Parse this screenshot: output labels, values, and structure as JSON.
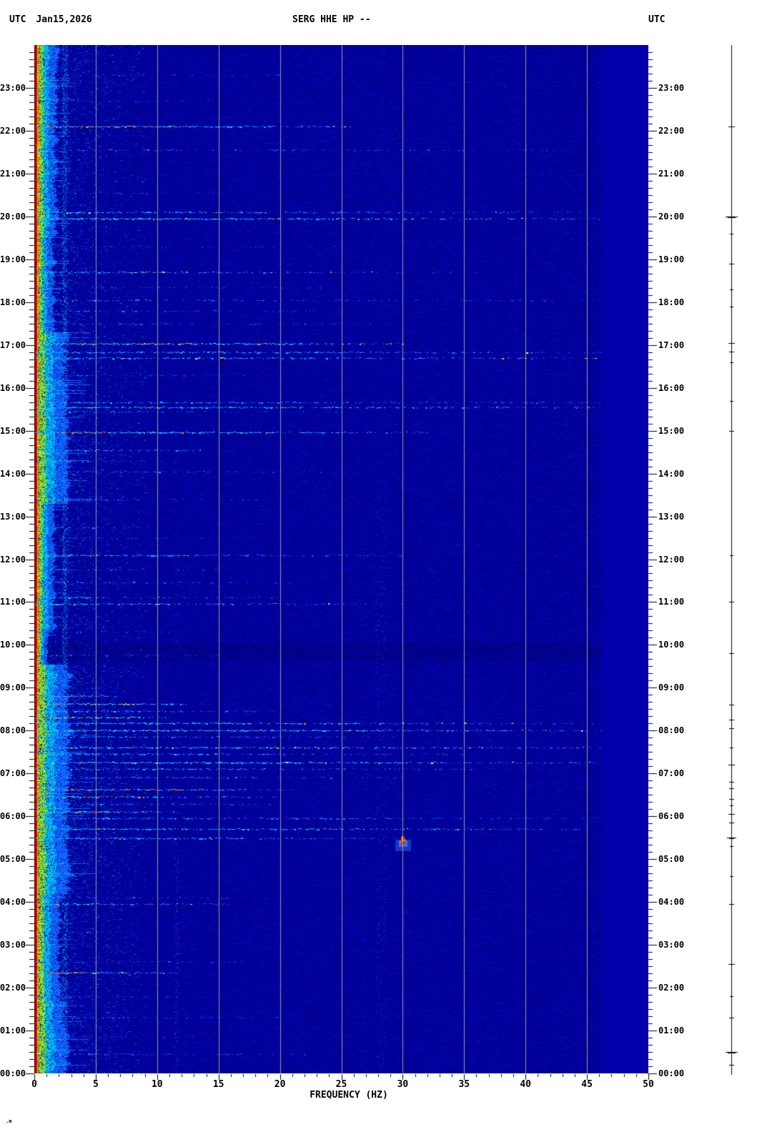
{
  "header": {
    "left_label": "UTC",
    "date": "Jan15,2026",
    "title": "SERG HHE HP --",
    "right_label": "UTC"
  },
  "x_axis": {
    "label": "FREQUENCY (HZ)",
    "tick_labels": [
      "0",
      "5",
      "10",
      "15",
      "20",
      "25",
      "30",
      "35",
      "40",
      "45",
      "50"
    ],
    "min_hz": 0,
    "max_hz": 50,
    "major_step_hz": 5,
    "minor_step_hz": 1
  },
  "y_axis": {
    "hour_labels": [
      "00:00",
      "01:00",
      "02:00",
      "03:00",
      "04:00",
      "05:00",
      "06:00",
      "07:00",
      "08:00",
      "09:00",
      "10:00",
      "11:00",
      "12:00",
      "13:00",
      "14:00",
      "15:00",
      "16:00",
      "17:00",
      "18:00",
      "19:00",
      "20:00",
      "21:00",
      "22:00",
      "23:00"
    ],
    "major_step_min": 60,
    "minor_step_min": 10
  },
  "corner_mark": ".m",
  "colors": {
    "page_bg": "#FFFFFF",
    "text": "#000000",
    "plot_base": "#0000A0",
    "plot_dark": "#000078",
    "plot_light": "#1420C8",
    "plot_flat": "#0000AA",
    "gridline": "#9C9C94",
    "band_dark_red": "#7A0000",
    "band_red": "#CC0000",
    "band_orange": "#FF9000",
    "band_yellow": "#FFE800",
    "band_green": "#55DD55",
    "streak_cyan": "#00CCEE",
    "streak_mid": "#00A0FF",
    "streak_blue": "#2255FF",
    "streak_dim": "#1133CC",
    "dot_orange": "#FF9900",
    "dot_red": "#EE3300",
    "dot_yellow": "#EEEE33",
    "trace": "#000000"
  },
  "chart_data": {
    "type": "heatmap",
    "subtype": "seismic-spectrogram",
    "title": "SERG HHE HP --",
    "date": "Jan15,2026",
    "timezone": "UTC",
    "xlabel": "FREQUENCY (HZ)",
    "x_range_hz": [
      0,
      50
    ],
    "y_range_hours": [
      0,
      24
    ],
    "colormap": "jet",
    "grid": "vertical gray lines every 5 Hz",
    "flat_cutoff_hz": 46.2,
    "activity_windows": [
      {
        "from": 0.0,
        "to": 1.7,
        "band_hz": 2.6,
        "level": 0.85
      },
      {
        "from": 1.7,
        "to": 4.2,
        "band_hz": 2.1,
        "level": 0.7
      },
      {
        "from": 4.2,
        "to": 9.55,
        "band_hz": 2.9,
        "level": 1.0
      },
      {
        "from": 9.55,
        "to": 10.3,
        "band_hz": 1.1,
        "level": 0.35
      },
      {
        "from": 10.3,
        "to": 13.3,
        "band_hz": 1.7,
        "level": 0.55
      },
      {
        "from": 13.3,
        "to": 17.3,
        "band_hz": 2.7,
        "level": 0.9
      },
      {
        "from": 17.3,
        "to": 19.6,
        "band_hz": 1.6,
        "level": 0.5
      },
      {
        "from": 19.6,
        "to": 24.0,
        "band_hz": 1.9,
        "level": 0.6
      }
    ],
    "vertical_bands": [
      {
        "hz": 2.45,
        "half_hz": 0.22,
        "from": 0,
        "to": 24,
        "strength": 0.75
      },
      {
        "hz": 4.9,
        "half_hz": 0.25,
        "from": 0,
        "to": 4,
        "strength": 0.18
      },
      {
        "hz": 6.3,
        "half_hz": 0.3,
        "from": 0,
        "to": 9.5,
        "strength": 0.12
      },
      {
        "hz": 11.55,
        "half_hz": 0.15,
        "from": 0,
        "to": 5.5,
        "strength": 0.3
      },
      {
        "hz": 11.55,
        "half_hz": 0.15,
        "from": 10,
        "to": 13,
        "strength": 0.12
      },
      {
        "hz": 26.8,
        "half_hz": 0.3,
        "from": 0,
        "to": 13,
        "strength": 0.1
      },
      {
        "hz": 28.2,
        "half_hz": 0.45,
        "from": 0,
        "to": 13.5,
        "strength": 0.25
      },
      {
        "hz": 28.2,
        "half_hz": 0.45,
        "from": 13.5,
        "to": 24,
        "strength": 0.08
      },
      {
        "hz": 30.4,
        "half_hz": 0.3,
        "from": 2,
        "to": 6,
        "strength": 0.1
      }
    ],
    "quiet_band_hours": {
      "from": 9.6,
      "to": 10.05
    },
    "events": [
      {
        "t": 0.45,
        "f": 22,
        "a": 0.3
      },
      {
        "t": 0.85,
        "f": 15,
        "a": 0.25
      },
      {
        "t": 1.3,
        "f": 20,
        "a": 0.3
      },
      {
        "t": 1.8,
        "f": 12,
        "a": 0.3
      },
      {
        "t": 2.35,
        "f": 12,
        "a": 0.7,
        "dots": 1,
        "red": 4.5
      },
      {
        "t": 2.6,
        "f": 18,
        "a": 0.3
      },
      {
        "t": 3.3,
        "f": 10,
        "a": 0.25
      },
      {
        "t": 3.95,
        "f": 16,
        "a": 0.55,
        "dots": 1,
        "red": 2
      },
      {
        "t": 4.1,
        "f": 20,
        "a": 0.3
      },
      {
        "t": 5.48,
        "f": 30,
        "a": 0.6,
        "dots": 1
      },
      {
        "t": 5.7,
        "f": 50,
        "a": 0.6,
        "dots": 1
      },
      {
        "t": 5.95,
        "f": 50,
        "a": 0.45
      },
      {
        "t": 6.1,
        "f": 12,
        "a": 0.85,
        "dots": 1,
        "red": 7
      },
      {
        "t": 6.28,
        "f": 20,
        "a": 0.45
      },
      {
        "t": 6.45,
        "f": 20,
        "a": 0.6,
        "dots": 1,
        "red": 10
      },
      {
        "t": 6.62,
        "f": 22,
        "a": 0.75,
        "dots": 1,
        "red": 14
      },
      {
        "t": 6.9,
        "f": 30,
        "a": 0.4
      },
      {
        "t": 7.1,
        "f": 40,
        "a": 0.5
      },
      {
        "t": 7.25,
        "f": 50,
        "a": 0.65,
        "dots": 1
      },
      {
        "t": 7.45,
        "f": 35,
        "a": 0.5
      },
      {
        "t": 7.6,
        "f": 50,
        "a": 0.6,
        "dots": 1
      },
      {
        "t": 7.85,
        "f": 30,
        "a": 0.45
      },
      {
        "t": 8.0,
        "f": 50,
        "a": 0.7,
        "dots": 1
      },
      {
        "t": 8.18,
        "f": 50,
        "a": 0.55,
        "dots": 1
      },
      {
        "t": 8.3,
        "f": 11,
        "a": 0.9,
        "dots": 1,
        "red": 8
      },
      {
        "t": 8.45,
        "f": 20,
        "a": 0.5
      },
      {
        "t": 8.62,
        "f": 14,
        "a": 0.9,
        "dots": 1,
        "red": 9
      },
      {
        "t": 8.8,
        "f": 7,
        "a": 0.8,
        "red": 5
      },
      {
        "t": 9.75,
        "f": 15,
        "a": 0.3
      },
      {
        "t": 10.3,
        "f": 12,
        "a": 0.25
      },
      {
        "t": 10.95,
        "f": 30,
        "a": 0.5,
        "dots": 1
      },
      {
        "t": 11.1,
        "f": 20,
        "a": 0.45
      },
      {
        "t": 11.45,
        "f": 22,
        "a": 0.35
      },
      {
        "t": 11.75,
        "f": 15,
        "a": 0.3
      },
      {
        "t": 12.1,
        "f": 30,
        "a": 0.5,
        "dots": 1
      },
      {
        "t": 12.5,
        "f": 20,
        "a": 0.25
      },
      {
        "t": 12.75,
        "f": 10,
        "a": 0.4
      },
      {
        "t": 13.4,
        "f": 18,
        "a": 0.3
      },
      {
        "t": 14.05,
        "f": 25,
        "a": 0.35
      },
      {
        "t": 14.3,
        "f": 12,
        "a": 0.3
      },
      {
        "t": 14.55,
        "f": 17,
        "a": 0.5
      },
      {
        "t": 14.96,
        "f": 32,
        "a": 0.8,
        "dots": 1,
        "red": 6
      },
      {
        "t": 15.45,
        "f": 25,
        "a": 0.3
      },
      {
        "t": 15.55,
        "f": 50,
        "a": 0.6,
        "dots": 1
      },
      {
        "t": 15.66,
        "f": 50,
        "a": 0.45
      },
      {
        "t": 16.3,
        "f": 20,
        "a": 0.25
      },
      {
        "t": 16.7,
        "f": 50,
        "a": 0.5,
        "dots": 1
      },
      {
        "t": 16.83,
        "f": 50,
        "a": 0.55,
        "dots": 1
      },
      {
        "t": 17.03,
        "f": 30,
        "a": 0.85,
        "dots": 1,
        "red": 13
      },
      {
        "t": 17.5,
        "f": 30,
        "a": 0.3
      },
      {
        "t": 17.8,
        "f": 25,
        "a": 0.3
      },
      {
        "t": 18.05,
        "f": 50,
        "a": 0.3
      },
      {
        "t": 18.35,
        "f": 25,
        "a": 0.25
      },
      {
        "t": 18.7,
        "f": 36,
        "a": 0.5,
        "dots": 1
      },
      {
        "t": 19.3,
        "f": 25,
        "a": 0.2
      },
      {
        "t": 19.95,
        "f": 50,
        "a": 0.7,
        "dots": 1
      },
      {
        "t": 20.1,
        "f": 50,
        "a": 0.45,
        "dots": 1
      },
      {
        "t": 20.55,
        "f": 20,
        "a": 0.2
      },
      {
        "t": 21.55,
        "f": 50,
        "a": 0.3
      },
      {
        "t": 22.1,
        "f": 26,
        "a": 0.8,
        "dots": 1,
        "red": 12
      },
      {
        "t": 22.7,
        "f": 15,
        "a": 0.2
      },
      {
        "t": 23.3,
        "f": 20,
        "a": 0.25
      }
    ],
    "bright_spot": {
      "t": 5.48,
      "hz": 30,
      "note": "red-yellow saturated blob on 30 Hz gridline with light-blue halo below"
    },
    "trace_spikes": [
      {
        "t": 22.1,
        "w": 4
      },
      {
        "t": 20.0,
        "w": 8
      },
      {
        "t": 19.6,
        "w": 2
      },
      {
        "t": 18.9,
        "w": 3
      },
      {
        "t": 18.3,
        "w": 2
      },
      {
        "t": 17.9,
        "w": 2
      },
      {
        "t": 17.05,
        "w": 4
      },
      {
        "t": 16.85,
        "w": 3
      },
      {
        "t": 16.6,
        "w": 2
      },
      {
        "t": 15.7,
        "w": 2
      },
      {
        "t": 15.0,
        "w": 3
      },
      {
        "t": 12.1,
        "w": 2
      },
      {
        "t": 11.0,
        "w": 3
      },
      {
        "t": 9.8,
        "w": 3
      },
      {
        "t": 8.6,
        "w": 3
      },
      {
        "t": 8.25,
        "w": 3
      },
      {
        "t": 8.05,
        "w": 3
      },
      {
        "t": 7.6,
        "w": 2
      },
      {
        "t": 7.2,
        "w": 4
      },
      {
        "t": 6.8,
        "w": 3
      },
      {
        "t": 6.65,
        "w": 3
      },
      {
        "t": 6.4,
        "w": 3
      },
      {
        "t": 6.25,
        "w": 2
      },
      {
        "t": 6.05,
        "w": 4
      },
      {
        "t": 5.85,
        "w": 3
      },
      {
        "t": 5.5,
        "w": 6
      },
      {
        "t": 5.3,
        "w": 2
      },
      {
        "t": 4.6,
        "w": 2
      },
      {
        "t": 3.95,
        "w": 3
      },
      {
        "t": 2.55,
        "w": 4
      },
      {
        "t": 1.8,
        "w": 2
      },
      {
        "t": 1.3,
        "w": 3
      },
      {
        "t": 0.5,
        "w": 8
      },
      {
        "t": 0.2,
        "w": 3
      }
    ]
  }
}
